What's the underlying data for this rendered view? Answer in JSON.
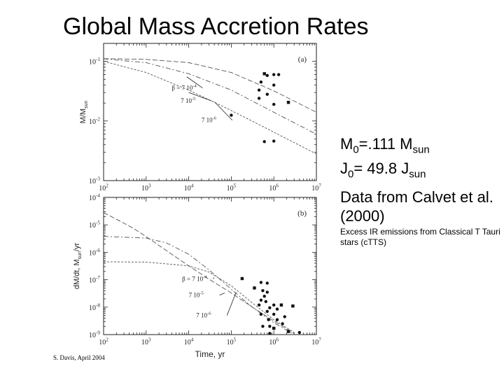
{
  "slide": {
    "title": "Global Mass Accretion Rates",
    "params": {
      "m_symbol": "M",
      "m_sub": "0",
      "m_value": "=.111 M",
      "m_unit_sub": "sun",
      "j_symbol": "J",
      "j_sub": "0",
      "j_value": "= 49.8 J",
      "j_unit_sub": "sun"
    },
    "source_text": "Data from Calvet et al.(2000)",
    "note": "Excess IR emissions from Classical T Tauri stars (cTTS)",
    "credit": "S. Davis, April 2004"
  },
  "chart_data": [
    {
      "type": "line",
      "panel_label": "(a)",
      "ylabel": "M/M",
      "ylabel_sub": "sun",
      "xscale": "log",
      "yscale": "log",
      "xlim": [
        100,
        10000000
      ],
      "ylim": [
        0.001,
        0.2
      ],
      "x_tick_labels": [
        {
          "base": "10",
          "exp": "2",
          "value": 100
        },
        {
          "base": "10",
          "exp": "3",
          "value": 1000
        },
        {
          "base": "10",
          "exp": "4",
          "value": 10000
        },
        {
          "base": "10",
          "exp": "5",
          "value": 100000
        },
        {
          "base": "10",
          "exp": "6",
          "value": 1000000
        },
        {
          "base": "10",
          "exp": "7",
          "value": 10000000
        }
      ],
      "y_tick_labels": [
        {
          "base": "10",
          "exp": "-1",
          "value": 0.1
        },
        {
          "base": "10",
          "exp": "-2",
          "value": 0.01
        },
        {
          "base": "10",
          "exp": "-3",
          "value": 0.001
        }
      ],
      "series": [
        {
          "x": [
            100,
            1000,
            10000,
            100000,
            1000000,
            10000000
          ],
          "y": [
            0.111,
            0.108,
            0.095,
            0.065,
            0.032,
            0.014
          ]
        },
        {
          "x": [
            100,
            1000,
            10000,
            100000,
            1000000,
            10000000
          ],
          "y": [
            0.11,
            0.095,
            0.062,
            0.033,
            0.014,
            0.006
          ]
        },
        {
          "x": [
            100,
            1000,
            10000,
            100000,
            1000000,
            10000000
          ],
          "y": [
            0.1,
            0.065,
            0.033,
            0.015,
            0.0065,
            0.0028
          ]
        }
      ],
      "annotations": [
        {
          "text": "β = 7 10",
          "exp": "-4",
          "x": 4000,
          "y": 0.033,
          "target_x": 9000,
          "target_y": 0.055
        },
        {
          "text": "7 10",
          "exp": "-5",
          "x": 6500,
          "y": 0.02,
          "target_x": 10000,
          "target_y": 0.03
        },
        {
          "text": "7 10",
          "exp": "-6",
          "x": 20000,
          "y": 0.0095,
          "target_x": 40000,
          "target_y": 0.021
        }
      ],
      "points": [
        {
          "x": 600000,
          "y": 0.062,
          "marker": "square"
        },
        {
          "x": 700000,
          "y": 0.058,
          "marker": "circle"
        },
        {
          "x": 1000000,
          "y": 0.06,
          "marker": "circle"
        },
        {
          "x": 1300000,
          "y": 0.06,
          "marker": "circle"
        },
        {
          "x": 500000,
          "y": 0.045,
          "marker": "circle"
        },
        {
          "x": 1000000,
          "y": 0.04,
          "marker": "circle"
        },
        {
          "x": 450000,
          "y": 0.033,
          "marker": "circle"
        },
        {
          "x": 700000,
          "y": 0.028,
          "marker": "circle"
        },
        {
          "x": 450000,
          "y": 0.024,
          "marker": "circle"
        },
        {
          "x": 1000000,
          "y": 0.019,
          "marker": "circle"
        },
        {
          "x": 2200000,
          "y": 0.0205,
          "marker": "square"
        },
        {
          "x": 100000,
          "y": 0.0125,
          "marker": "circle"
        },
        {
          "x": 600000,
          "y": 0.0045,
          "marker": "circle"
        },
        {
          "x": 1000000,
          "y": 0.0046,
          "marker": "circle"
        }
      ]
    },
    {
      "type": "line",
      "panel_label": "(b)",
      "ylabel": "dM/dt, M",
      "ylabel_sub": "sun",
      "ylabel_suffix": "/yr",
      "xlabel": "Time, yr",
      "xscale": "log",
      "yscale": "log",
      "xlim": [
        100,
        10000000
      ],
      "ylim": [
        1e-09,
        0.0001
      ],
      "x_tick_labels": [
        {
          "base": "10",
          "exp": "2",
          "value": 100
        },
        {
          "base": "10",
          "exp": "3",
          "value": 1000
        },
        {
          "base": "10",
          "exp": "4",
          "value": 10000
        },
        {
          "base": "10",
          "exp": "5",
          "value": 100000
        },
        {
          "base": "10",
          "exp": "6",
          "value": 1000000
        },
        {
          "base": "10",
          "exp": "7",
          "value": 10000000
        }
      ],
      "y_tick_labels": [
        {
          "base": "10",
          "exp": "-4",
          "value": 0.0001
        },
        {
          "base": "10",
          "exp": "-5",
          "value": 1e-05
        },
        {
          "base": "10",
          "exp": "-6",
          "value": 1e-06
        },
        {
          "base": "10",
          "exp": "-7",
          "value": 1e-07
        },
        {
          "base": "10",
          "exp": "-8",
          "value": 1e-08
        },
        {
          "base": "10",
          "exp": "-9",
          "value": 1e-09
        }
      ],
      "series": [
        {
          "x": [
            100,
            200,
            500,
            1000,
            3000,
            10000,
            30000,
            100000,
            300000,
            1000000,
            3000000
          ],
          "y": [
            2.8e-05,
            1.6e-05,
            7.5e-06,
            3.7e-06,
            1.15e-06,
            3.2e-07,
            1.05e-07,
            3.3e-08,
            1.05e-08,
            3.1e-09,
            1.1e-09
          ]
        },
        {
          "x": [
            100,
            1000,
            3000,
            10000,
            30000,
            100000,
            300000,
            1000000,
            3000000
          ],
          "y": [
            3.8e-06,
            3.3e-06,
            2.2e-06,
            8.5e-07,
            2.3e-07,
            4.5e-08,
            1.05e-08,
            2.7e-09,
            1e-09
          ]
        },
        {
          "x": [
            100,
            1000,
            10000,
            30000,
            100000,
            300000,
            1000000,
            3000000
          ],
          "y": [
            4.5e-07,
            4.4e-07,
            3.2e-07,
            1.9e-07,
            6e-08,
            1.5e-08,
            3.5e-09,
            1.2e-09
          ]
        }
      ],
      "annotations": [
        {
          "text": "β = 7 10",
          "exp": "-4",
          "x": 7000,
          "y": 9e-08,
          "target_x": 40000,
          "target_y": 1.2e-07
        },
        {
          "text": "7 10",
          "exp": "-5",
          "x": 10000,
          "y": 2.3e-08,
          "target_x": 70000,
          "target_y": 3.3e-08
        },
        {
          "text": "7 10",
          "exp": "-6",
          "x": 15000,
          "y": 4.2e-09,
          "target_x": 130000,
          "target_y": 3.5e-08
        }
      ],
      "points": [
        {
          "x": 180000,
          "y": 1.1e-07,
          "marker": "square"
        },
        {
          "x": 500000,
          "y": 8e-08,
          "marker": "circle"
        },
        {
          "x": 700000,
          "y": 7.5e-08,
          "marker": "circle"
        },
        {
          "x": 350000,
          "y": 5e-08,
          "marker": "square"
        },
        {
          "x": 550000,
          "y": 4e-08,
          "marker": "circle"
        },
        {
          "x": 700000,
          "y": 3.5e-08,
          "marker": "circle"
        },
        {
          "x": 600000,
          "y": 2.5e-08,
          "marker": "circle"
        },
        {
          "x": 500000,
          "y": 1.8e-08,
          "marker": "circle"
        },
        {
          "x": 650000,
          "y": 1.6e-08,
          "marker": "circle"
        },
        {
          "x": 450000,
          "y": 1.2e-08,
          "marker": "circle"
        },
        {
          "x": 1000000,
          "y": 1.2e-08,
          "marker": "circle"
        },
        {
          "x": 1500000,
          "y": 1.2e-08,
          "marker": "square"
        },
        {
          "x": 2800000,
          "y": 1.1e-08,
          "marker": "square"
        },
        {
          "x": 800000,
          "y": 9.5e-09,
          "marker": "circle"
        },
        {
          "x": 1200000,
          "y": 8.5e-09,
          "marker": "circle"
        },
        {
          "x": 700000,
          "y": 7e-09,
          "marker": "circle"
        },
        {
          "x": 500000,
          "y": 5.5e-09,
          "marker": "circle"
        },
        {
          "x": 1000000,
          "y": 5.5e-09,
          "marker": "circle"
        },
        {
          "x": 1800000,
          "y": 4.5e-09,
          "marker": "circle"
        },
        {
          "x": 750000,
          "y": 3.5e-09,
          "marker": "circle"
        },
        {
          "x": 1200000,
          "y": 3.5e-09,
          "marker": "circle"
        },
        {
          "x": 1600000,
          "y": 2.5e-09,
          "marker": "circle"
        },
        {
          "x": 550000,
          "y": 2e-09,
          "marker": "circle"
        },
        {
          "x": 800000,
          "y": 2e-09,
          "marker": "circle"
        },
        {
          "x": 1000000,
          "y": 1.7e-09,
          "marker": "square"
        },
        {
          "x": 2200000,
          "y": 1.3e-09,
          "marker": "square"
        },
        {
          "x": 4000000,
          "y": 1.2e-09,
          "marker": "circle"
        },
        {
          "x": 800000,
          "y": 1.1e-09,
          "marker": "circle"
        }
      ]
    }
  ]
}
